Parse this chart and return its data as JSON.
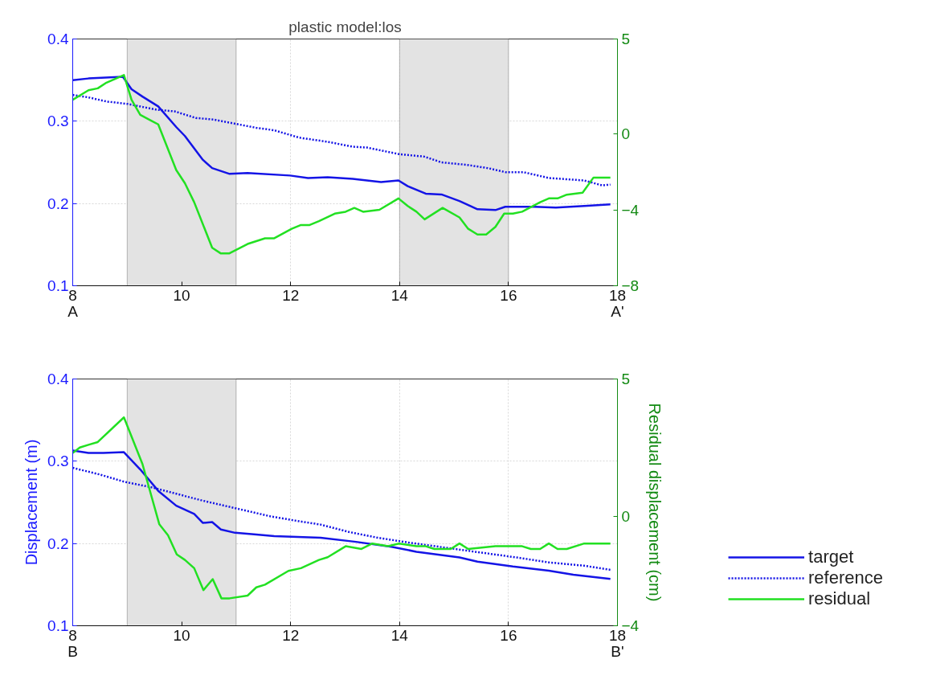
{
  "chart_data": [
    {
      "type": "line",
      "title": "plastic model:los",
      "annotations": [
        "A",
        "A'"
      ],
      "xlim": [
        8,
        18
      ],
      "xticks": [
        8,
        10,
        12,
        14,
        16,
        18
      ],
      "ylim": [
        0.1,
        0.4
      ],
      "yticks": [
        0.1,
        0.2,
        0.3,
        0.4
      ],
      "y2lim": [
        -8,
        5
      ],
      "y2ticks": [
        -8,
        -4,
        0,
        5
      ],
      "grid": true,
      "legend": false,
      "bands": [
        {
          "axis": "x",
          "from": 9,
          "to": 11,
          "color": "#e3e3e3"
        },
        {
          "axis": "x",
          "from": 14,
          "to": 16,
          "color": "#e3e3e3"
        }
      ],
      "series": [
        {
          "color": "#1414e6",
          "line_style": "solid",
          "x": [
            8.0,
            8.29,
            8.92,
            9.08,
            9.28,
            9.57,
            9.9,
            10.06,
            10.39,
            10.56,
            10.88,
            11.21,
            11.99,
            12.32,
            12.68,
            13.14,
            13.66,
            13.98,
            14.15,
            14.48,
            14.77,
            15.1,
            15.43,
            15.76,
            15.94,
            16.48,
            16.87,
            17.39,
            17.87
          ],
          "values": [
            0.35,
            0.352,
            0.354,
            0.339,
            0.33,
            0.318,
            0.293,
            0.282,
            0.253,
            0.243,
            0.236,
            0.237,
            0.234,
            0.231,
            0.232,
            0.23,
            0.226,
            0.228,
            0.221,
            0.212,
            0.211,
            0.203,
            0.193,
            0.192,
            0.196,
            0.196,
            0.195,
            0.197,
            0.199
          ]
        },
        {
          "color": "#1414e6",
          "line_style": "dotted",
          "x": [
            8.0,
            8.29,
            8.62,
            9.01,
            9.54,
            9.87,
            10.26,
            10.59,
            10.98,
            11.37,
            11.7,
            12.16,
            12.68,
            13.14,
            13.4,
            13.99,
            14.45,
            14.77,
            15.23,
            15.62,
            15.95,
            16.28,
            16.74,
            17.39,
            17.72,
            17.87
          ],
          "values": [
            0.332,
            0.329,
            0.324,
            0.321,
            0.314,
            0.312,
            0.304,
            0.302,
            0.297,
            0.292,
            0.289,
            0.28,
            0.275,
            0.269,
            0.268,
            0.26,
            0.257,
            0.25,
            0.247,
            0.243,
            0.238,
            0.238,
            0.231,
            0.228,
            0.222,
            0.223
          ]
        },
        {
          "color": "#22e022",
          "line_style": "solid",
          "axis": "y2",
          "x": [
            8.0,
            8.29,
            8.46,
            8.62,
            8.94,
            9.08,
            9.24,
            9.44,
            9.57,
            9.9,
            10.06,
            10.23,
            10.56,
            10.72,
            10.87,
            11.21,
            11.53,
            11.7,
            12.02,
            12.19,
            12.35,
            12.52,
            12.81,
            13.01,
            13.17,
            13.33,
            13.63,
            13.98,
            14.15,
            14.31,
            14.46,
            14.79,
            15.1,
            15.26,
            15.43,
            15.59,
            15.76,
            15.92,
            16.08,
            16.25,
            16.58,
            16.74,
            16.9,
            17.07,
            17.36,
            17.56,
            17.72,
            17.87
          ],
          "values": [
            1.8,
            2.3,
            2.4,
            2.7,
            3.1,
            1.8,
            1.0,
            0.7,
            0.5,
            -1.9,
            -2.6,
            -3.6,
            -6.0,
            -6.3,
            -6.3,
            -5.8,
            -5.5,
            -5.5,
            -5.0,
            -4.8,
            -4.8,
            -4.6,
            -4.2,
            -4.1,
            -3.9,
            -4.1,
            -4.0,
            -3.4,
            -3.8,
            -4.1,
            -4.5,
            -3.9,
            -4.4,
            -5.0,
            -5.3,
            -5.3,
            -4.9,
            -4.2,
            -4.2,
            -4.1,
            -3.6,
            -3.4,
            -3.4,
            -3.2,
            -3.1,
            -2.3,
            -2.3,
            -2.3
          ]
        }
      ]
    },
    {
      "type": "line",
      "ylabel": "Displacement (m)",
      "y2label": "Residual displacement (cm)",
      "annotations": [
        "B",
        "B'"
      ],
      "xlim": [
        8,
        18
      ],
      "xticks": [
        8,
        10,
        12,
        14,
        16,
        18
      ],
      "ylim": [
        0.1,
        0.4
      ],
      "yticks": [
        0.1,
        0.2,
        0.3,
        0.4
      ],
      "y2lim": [
        -4,
        5
      ],
      "y2ticks": [
        -4,
        0,
        5
      ],
      "grid": true,
      "legend": "bottom right",
      "bands": [
        {
          "axis": "x",
          "from": 9,
          "to": 11,
          "color": "#e3e3e3"
        }
      ],
      "series": [
        {
          "name": "target",
          "color": "#1414e6",
          "line_style": "solid",
          "x": [
            8.0,
            8.29,
            8.56,
            8.94,
            9.24,
            9.57,
            9.9,
            10.23,
            10.39,
            10.56,
            10.72,
            10.98,
            11.37,
            11.7,
            12.55,
            13.2,
            13.85,
            14.31,
            15.1,
            15.43,
            16.08,
            16.74,
            17.19,
            17.87
          ],
          "values": [
            0.313,
            0.31,
            0.31,
            0.311,
            0.29,
            0.264,
            0.246,
            0.236,
            0.225,
            0.226,
            0.217,
            0.213,
            0.211,
            0.209,
            0.207,
            0.202,
            0.196,
            0.19,
            0.183,
            0.178,
            0.172,
            0.167,
            0.162,
            0.157
          ]
        },
        {
          "name": "reference",
          "color": "#1414e6",
          "line_style": "dotted",
          "x": [
            8.0,
            8.49,
            8.95,
            9.47,
            9.87,
            10.39,
            10.98,
            11.63,
            12.16,
            12.55,
            13.07,
            13.6,
            14.18,
            14.84,
            15.49,
            16.15,
            16.74,
            17.39,
            17.87
          ],
          "values": [
            0.292,
            0.284,
            0.275,
            0.268,
            0.261,
            0.252,
            0.243,
            0.233,
            0.227,
            0.223,
            0.214,
            0.207,
            0.201,
            0.195,
            0.189,
            0.183,
            0.177,
            0.173,
            0.168
          ]
        },
        {
          "name": "residual",
          "color": "#22e022",
          "line_style": "solid",
          "axis": "y2",
          "x": [
            8.0,
            8.13,
            8.29,
            8.46,
            8.94,
            9.28,
            9.59,
            9.75,
            9.91,
            10.06,
            10.23,
            10.4,
            10.57,
            10.73,
            10.88,
            11.21,
            11.37,
            11.53,
            11.96,
            12.19,
            12.52,
            12.68,
            13.01,
            13.3,
            13.5,
            13.79,
            13.99,
            14.31,
            14.48,
            14.64,
            14.94,
            15.1,
            15.26,
            15.76,
            16.25,
            16.41,
            16.58,
            16.74,
            16.9,
            17.07,
            17.39,
            17.87
          ],
          "values": [
            2.3,
            2.5,
            2.6,
            2.7,
            3.6,
            1.9,
            -0.3,
            -0.7,
            -1.4,
            -1.6,
            -1.9,
            -2.7,
            -2.3,
            -3.0,
            -3.0,
            -2.9,
            -2.6,
            -2.5,
            -2.0,
            -1.9,
            -1.6,
            -1.5,
            -1.1,
            -1.2,
            -1.0,
            -1.1,
            -1.0,
            -1.1,
            -1.1,
            -1.2,
            -1.2,
            -1.0,
            -1.2,
            -1.1,
            -1.1,
            -1.2,
            -1.2,
            -1.0,
            -1.2,
            -1.2,
            -1.0,
            -1.0
          ]
        }
      ]
    }
  ]
}
